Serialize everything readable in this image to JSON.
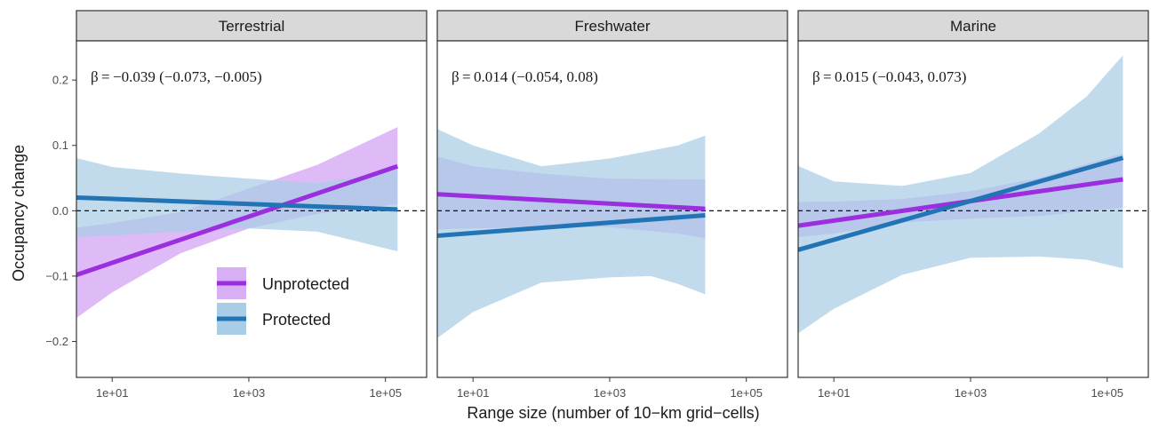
{
  "chart_data": {
    "type": "line",
    "xlabel": "Range size (number of 10−km grid−cells)",
    "ylabel": "Occupancy change",
    "x_scale": "log10",
    "xlim": [
      3,
      400000
    ],
    "ylim": [
      -0.255,
      0.26
    ],
    "x_ticks": [
      10,
      1000,
      100000
    ],
    "x_tick_labels": [
      "1e+01",
      "1e+03",
      "1e+05"
    ],
    "y_ticks": [
      -0.2,
      -0.1,
      0.0,
      0.1,
      0.2
    ],
    "y_tick_labels": [
      "−0.2",
      "−0.1",
      "0.0",
      "0.1",
      "0.2"
    ],
    "reference_line_y": 0,
    "grid": false,
    "legend": {
      "placement": "inside-bottom-left of first panel",
      "entries": [
        "Unprotected",
        "Protected"
      ]
    },
    "colors": {
      "Unprotected": "#9b2fe0",
      "Protected": "#2274b5",
      "Unprotected_band": "#d8aef5",
      "Protected_band": "#a9cde6"
    },
    "panels": [
      {
        "title": "Terrestrial",
        "annotation": "β = −0.039 (−0.073, −0.005)",
        "x_range": [
          1,
          150000
        ],
        "series": [
          {
            "name": "Unprotected",
            "line": [
              [
                1,
                -0.115
              ],
              [
                150000,
                0.068
              ]
            ],
            "band_x": [
              1,
              10,
              100,
              1000,
              10000,
              150000
            ],
            "band_lower": [
              -0.2,
              -0.125,
              -0.065,
              -0.027,
              -0.005,
              0.01
            ],
            "band_upper": [
              -0.032,
              -0.019,
              -0.002,
              0.034,
              0.07,
              0.128
            ]
          },
          {
            "name": "Protected",
            "line": [
              [
                1,
                0.022
              ],
              [
                150000,
                0.002
              ]
            ],
            "band_x": [
              1,
              10,
              100,
              1000,
              10000,
              150000
            ],
            "band_lower": [
              -0.042,
              -0.038,
              -0.032,
              -0.027,
              -0.032,
              -0.062
            ],
            "band_upper": [
              0.093,
              0.067,
              0.057,
              0.049,
              0.042,
              0.062
            ]
          }
        ]
      },
      {
        "title": "Freshwater",
        "annotation": "β = 0.014 (−0.054, 0.08)",
        "x_range": [
          1,
          25000
        ],
        "series": [
          {
            "name": "Unprotected",
            "line": [
              [
                1,
                0.028
              ],
              [
                25000,
                0.003
              ]
            ],
            "band_x": [
              1,
              10,
              100,
              1000,
              10000,
              25000
            ],
            "band_lower": [
              -0.03,
              -0.027,
              -0.025,
              -0.025,
              -0.035,
              -0.042
            ],
            "band_upper": [
              0.097,
              0.068,
              0.057,
              0.049,
              0.048,
              0.048
            ]
          },
          {
            "name": "Protected",
            "line": [
              [
                1,
                -0.042
              ],
              [
                25000,
                -0.007
              ]
            ],
            "band_x": [
              1,
              3,
              10,
              100,
              1000,
              4000,
              10000,
              25000
            ],
            "band_lower": [
              -0.232,
              -0.195,
              -0.155,
              -0.11,
              -0.102,
              -0.1,
              -0.112,
              -0.128
            ],
            "band_upper": [
              0.148,
              0.125,
              0.1,
              0.068,
              0.08,
              0.092,
              0.1,
              0.115
            ]
          }
        ]
      },
      {
        "title": "Marine",
        "annotation": "β = 0.015 (−0.043, 0.073)",
        "x_range": [
          1,
          170000
        ],
        "series": [
          {
            "name": "Unprotected",
            "line": [
              [
                1,
                -0.03
              ],
              [
                170000,
                0.048
              ]
            ],
            "band_x": [
              1,
              10,
              100,
              1000,
              10000,
              170000
            ],
            "band_lower": [
              -0.045,
              -0.035,
              -0.018,
              -0.012,
              -0.008,
              0.005
            ],
            "band_upper": [
              0.013,
              0.014,
              0.018,
              0.03,
              0.05,
              0.088
            ]
          },
          {
            "name": "Protected",
            "line": [
              [
                1,
                -0.074
              ],
              [
                170000,
                0.081
              ]
            ],
            "band_x": [
              1,
              10,
              100,
              1000,
              10000,
              50000,
              170000
            ],
            "band_lower": [
              -0.222,
              -0.15,
              -0.098,
              -0.072,
              -0.07,
              -0.075,
              -0.088
            ],
            "band_upper": [
              0.09,
              0.045,
              0.038,
              0.058,
              0.118,
              0.175,
              0.238
            ]
          }
        ]
      }
    ]
  }
}
